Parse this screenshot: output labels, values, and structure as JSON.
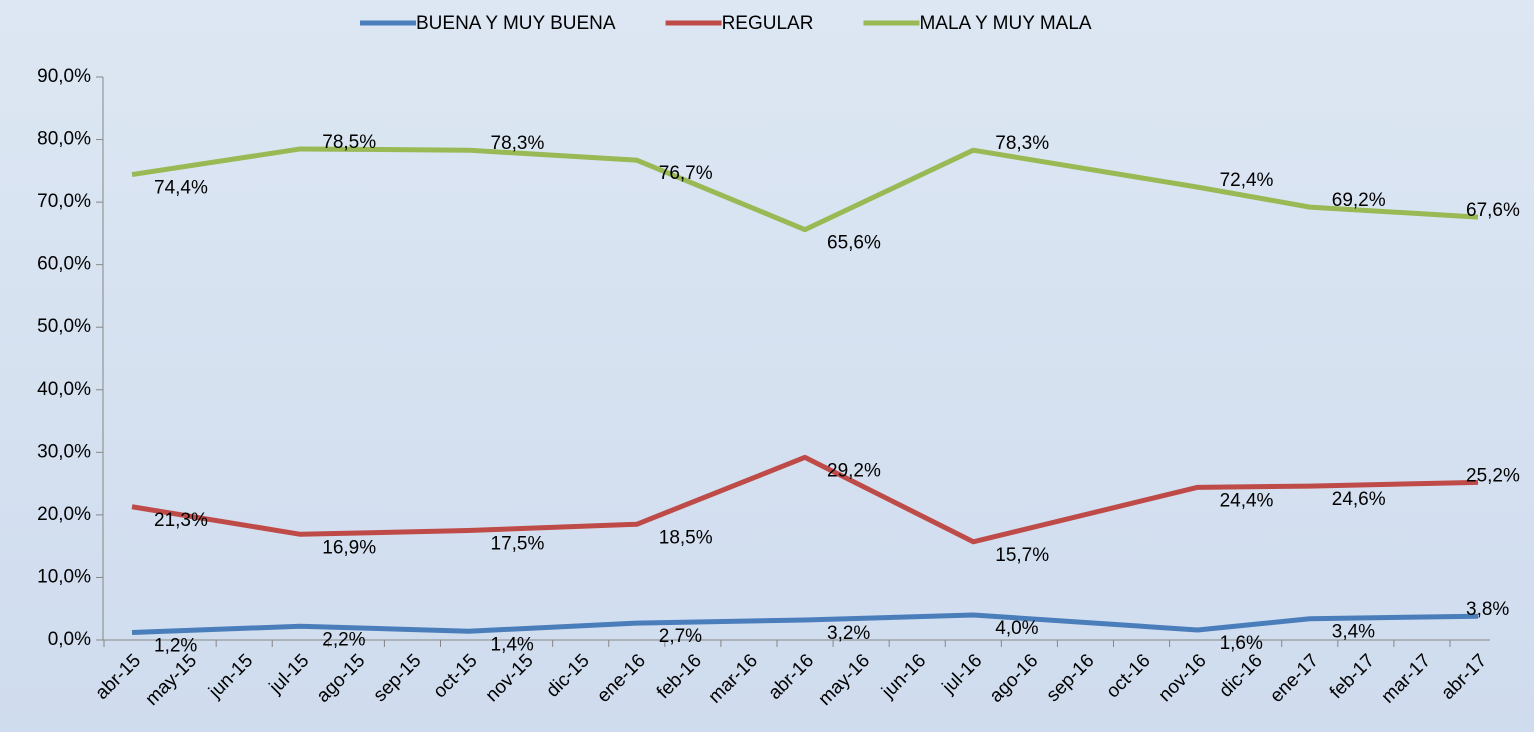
{
  "chart_data": {
    "type": "line",
    "categories": [
      "abr-15",
      "may-15",
      "jun-15",
      "jul-15",
      "ago-15",
      "sep-15",
      "oct-15",
      "nov-15",
      "dic-15",
      "ene-16",
      "feb-16",
      "mar-16",
      "abr-16",
      "may-16",
      "jun-16",
      "jul-16",
      "ago-16",
      "sep-16",
      "oct-16",
      "nov-16",
      "dic-16",
      "ene-17",
      "feb-17",
      "mar-17",
      "abr-17"
    ],
    "x": [
      "abr-15",
      "jul-15",
      "oct-15",
      "ene-16",
      "abr-16",
      "jul-16",
      "nov-16",
      "ene-17",
      "abr-17"
    ],
    "series": [
      {
        "name": "BUENA Y MUY BUENA",
        "color": "#4a7ebb",
        "values": [
          1.2,
          2.2,
          1.4,
          2.7,
          3.2,
          4.0,
          1.6,
          3.4,
          3.8
        ],
        "value_labels": [
          "1,2%",
          "2,2%",
          "1,4%",
          "2,7%",
          "3,2%",
          "4,0%",
          "1,6%",
          "3,4%",
          "3,8%"
        ]
      },
      {
        "name": "REGULAR",
        "color": "#be4b48",
        "values": [
          21.3,
          16.9,
          17.5,
          18.5,
          29.2,
          15.7,
          24.4,
          24.6,
          25.2
        ],
        "value_labels": [
          "21,3%",
          "16,9%",
          "17,5%",
          "18,5%",
          "29,2%",
          "15,7%",
          "24,4%",
          "24,6%",
          "25,2%"
        ]
      },
      {
        "name": "MALA Y MUY MALA",
        "color": "#98b954",
        "values": [
          74.4,
          78.5,
          78.3,
          76.7,
          65.6,
          78.3,
          72.4,
          69.2,
          67.6
        ],
        "value_labels": [
          "74,4%",
          "78,5%",
          "78,3%",
          "76,7%",
          "65,6%",
          "78,3%",
          "72,4%",
          "69,2%",
          "67,6%"
        ]
      }
    ],
    "ylim": [
      0,
      90
    ],
    "yticks": [
      {
        "value": 0,
        "label": "0,0%"
      },
      {
        "value": 10,
        "label": "10,0%"
      },
      {
        "value": 20,
        "label": "20,0%"
      },
      {
        "value": 30,
        "label": "30,0%"
      },
      {
        "value": 40,
        "label": "40,0%"
      },
      {
        "value": 50,
        "label": "50,0%"
      },
      {
        "value": 60,
        "label": "60,0%"
      },
      {
        "value": 70,
        "label": "70,0%"
      },
      {
        "value": 80,
        "label": "80,0%"
      },
      {
        "value": 90,
        "label": "90,0%"
      }
    ],
    "legend": "top",
    "grid": false
  }
}
